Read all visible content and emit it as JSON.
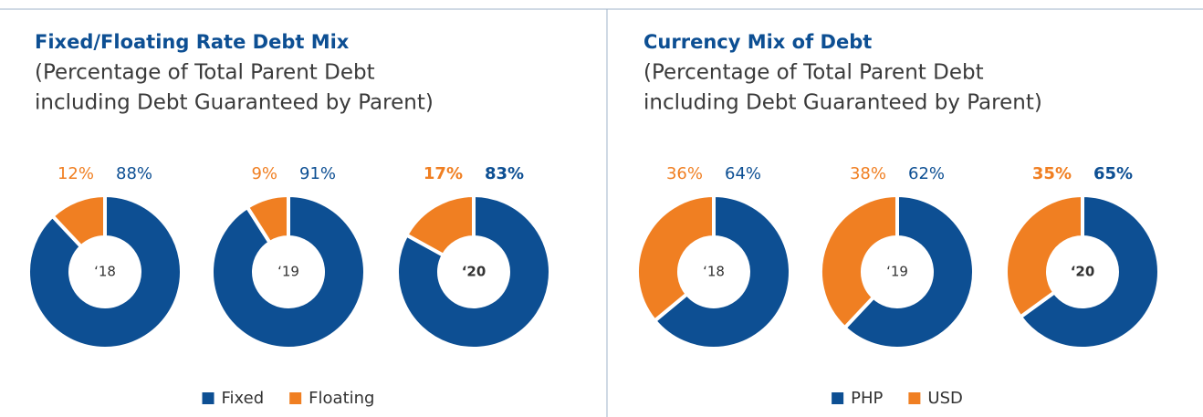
{
  "chart_data": [
    {
      "type": "pie",
      "title": "Fixed/Floating Rate Debt Mix",
      "subtitle": [
        "(Percentage of Total Parent Debt",
        "including Debt Guaranteed by Parent)"
      ],
      "categories": [
        "‘18",
        "‘19",
        "‘20"
      ],
      "series": [
        {
          "name": "Fixed",
          "color": "#0d4f93",
          "values": [
            88,
            91,
            83
          ],
          "value_labels": [
            "88%",
            "91%",
            "83%"
          ]
        },
        {
          "name": "Floating",
          "color": "#f07f22",
          "values": [
            12,
            9,
            17
          ],
          "value_labels": [
            "12%",
            "9%",
            "17%"
          ]
        }
      ]
    },
    {
      "type": "pie",
      "title": "Currency Mix of Debt",
      "subtitle": [
        "(Percentage of Total Parent Debt",
        "including Debt Guaranteed by Parent)"
      ],
      "categories": [
        "‘18",
        "‘19",
        "‘20"
      ],
      "series": [
        {
          "name": "PHP",
          "color": "#0d4f93",
          "values": [
            64,
            62,
            65
          ],
          "value_labels": [
            "64%",
            "62%",
            "65%"
          ]
        },
        {
          "name": "USD",
          "color": "#f07f22",
          "values": [
            36,
            38,
            35
          ],
          "value_labels": [
            "36%",
            "38%",
            "35%"
          ]
        }
      ]
    }
  ]
}
